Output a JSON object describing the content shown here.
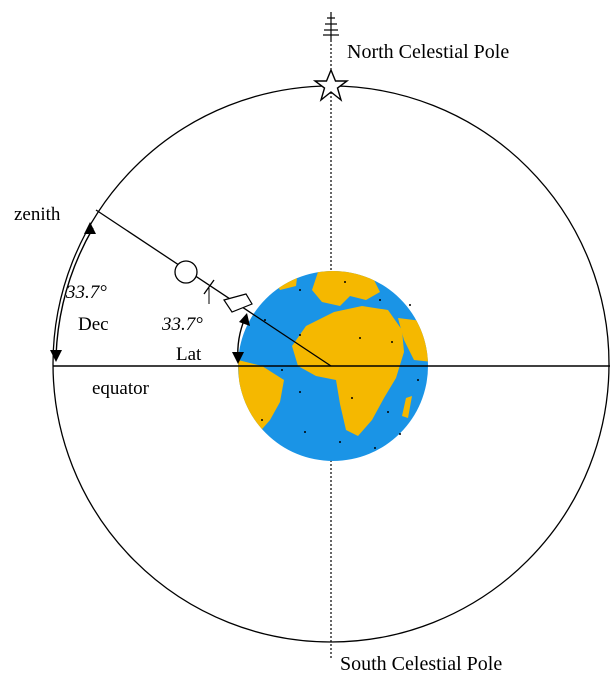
{
  "labels": {
    "north_pole": "North Celestial Pole",
    "south_pole": "South Celestial Pole",
    "zenith": "zenith",
    "equator": "equator",
    "dec_angle": "33.7°",
    "dec_label": "Dec",
    "lat_angle": "33.7°",
    "lat_label": "Lat"
  },
  "colors": {
    "ocean": "#1a94e6",
    "land": "#f5b800",
    "line": "#000000"
  },
  "icons": {
    "north_star": "star-icon",
    "pole_marker": "pole-arrow-icon"
  }
}
